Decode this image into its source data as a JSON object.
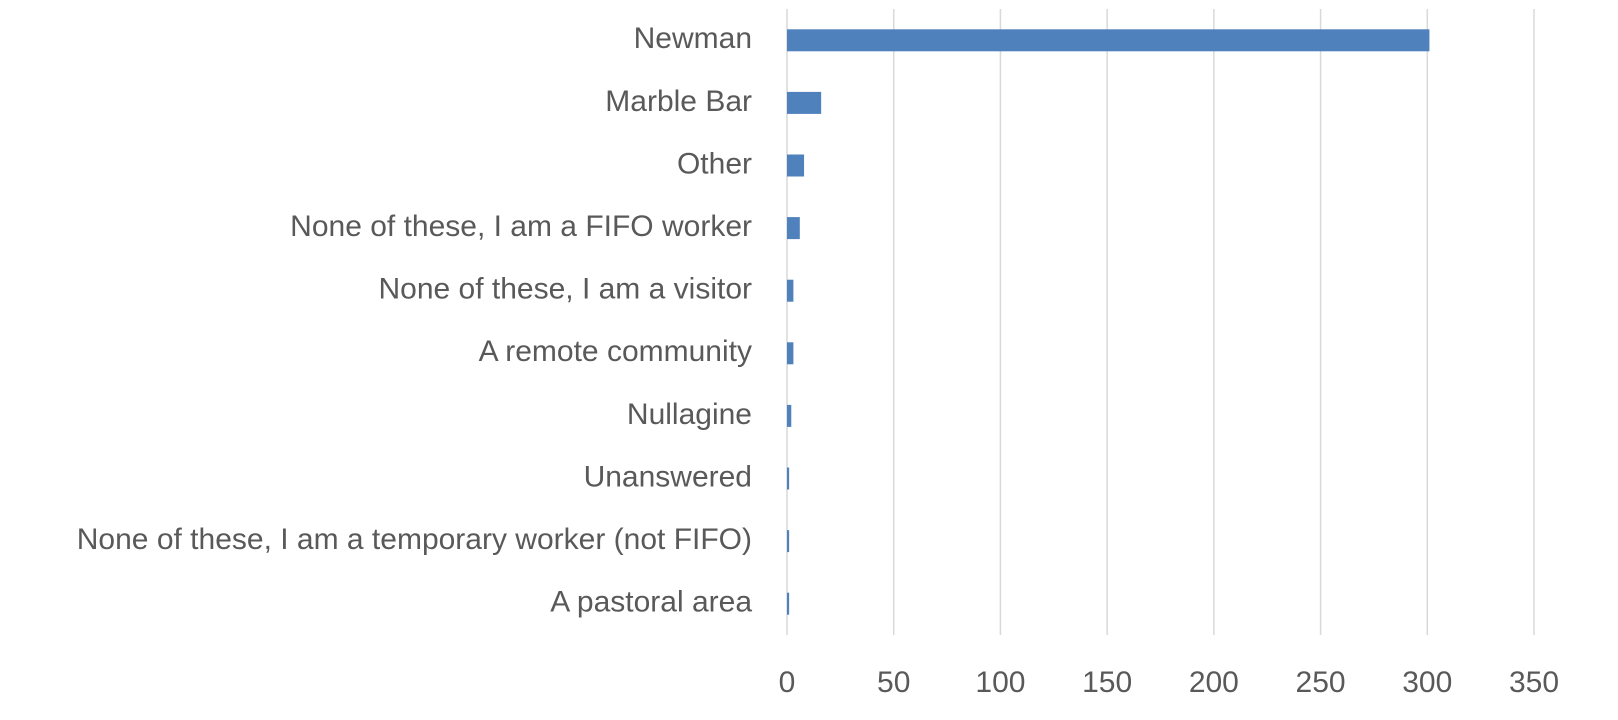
{
  "chart_data": {
    "type": "bar",
    "orientation": "horizontal",
    "categories": [
      "Newman",
      "Marble Bar",
      "Other",
      "None of these, I am a FIFO worker",
      "None of these, I am a visitor",
      "A remote community",
      "Nullagine",
      "Unanswered",
      "None of these, I am a temporary worker (not FIFO)",
      "A pastoral area"
    ],
    "values": [
      301,
      16,
      8,
      6,
      3,
      3,
      2,
      1,
      1,
      1
    ],
    "color": "#4f81bd",
    "xlim": [
      0,
      350
    ],
    "xticks": [
      0,
      50,
      100,
      150,
      200,
      250,
      300,
      350
    ],
    "grid": true
  }
}
